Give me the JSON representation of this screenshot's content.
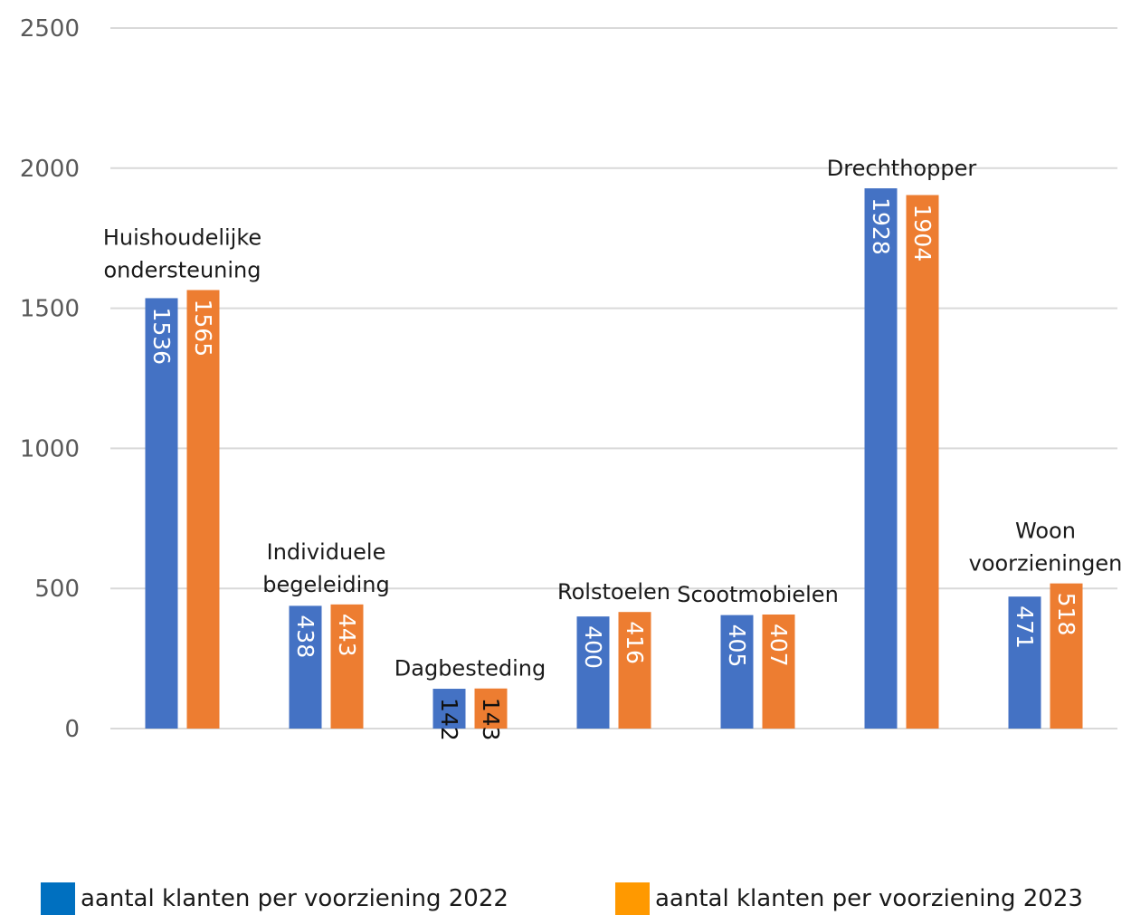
{
  "chart_data": {
    "type": "bar",
    "title": "",
    "xlabel": "",
    "ylabel": "",
    "ylim": [
      0,
      2500
    ],
    "yticks": [
      0,
      500,
      1000,
      1500,
      2000,
      2500
    ],
    "grid": true,
    "legend_position": "bottom",
    "categories": [
      [
        "Huishoudelijke",
        "ondersteuning"
      ],
      [
        "Individuele",
        "begeleiding"
      ],
      [
        "Dagbesteding"
      ],
      [
        "Rolstoelen"
      ],
      [
        "Scootmobielen"
      ],
      [
        "Drechthopper"
      ],
      [
        "Woon",
        "voorzieningen"
      ]
    ],
    "series": [
      {
        "name": "aantal klanten per voorziening 2022",
        "color": "#4472C4",
        "legend_color": "#0070C0",
        "values": [
          1536,
          438,
          142,
          400,
          405,
          1928,
          471
        ]
      },
      {
        "name": "aantal klanten per voorziening 2023",
        "color": "#ED7D31",
        "legend_color": "#FF9900",
        "values": [
          1565,
          443,
          143,
          416,
          407,
          1904,
          518
        ]
      }
    ]
  }
}
